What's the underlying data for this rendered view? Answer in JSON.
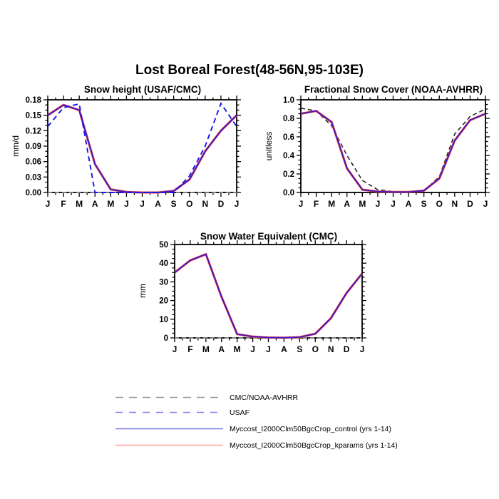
{
  "header": {
    "title": "Lost Boreal Forest(48-56N,95-103E)"
  },
  "months": [
    "J",
    "F",
    "M",
    "A",
    "M",
    "J",
    "J",
    "A",
    "S",
    "O",
    "N",
    "D",
    "J"
  ],
  "chart_data": [
    {
      "type": "line",
      "title": "Snow height (USAF/CMC)",
      "ylabel": "mm/d",
      "ylim": [
        0,
        0.18
      ],
      "yticks": [
        0,
        0.03,
        0.06,
        0.09,
        0.12,
        0.15,
        0.18
      ],
      "ytick_labels": [
        "0.00",
        "0.03",
        "0.06",
        "0.09",
        "0.12",
        "0.15",
        "0.18"
      ],
      "y_minor_per_major": 2,
      "categories": [
        "J",
        "F",
        "M",
        "A",
        "M",
        "J",
        "J",
        "A",
        "S",
        "O",
        "N",
        "D",
        "J"
      ],
      "series": [
        {
          "name": "cmc-obs",
          "label": "CMC/NOAA-AVHRR",
          "color": "#999999",
          "dash": "6,4",
          "width": 1.4,
          "values": [
            0,
            0,
            0,
            0,
            0,
            0,
            0,
            0,
            0,
            0,
            0,
            0,
            0
          ]
        },
        {
          "name": "kparams",
          "label": "Myccost_I2000Clm50BgcCrop_kparams (yrs 1-14)",
          "color": "#f04545",
          "dash": "",
          "width": 3.1,
          "values": [
            0.15,
            0.17,
            0.16,
            0.055,
            0.006,
            0.001,
            0.0,
            0.0,
            0.003,
            0.025,
            0.08,
            0.12,
            0.15
          ]
        },
        {
          "name": "control",
          "label": "Myccost_I2000Clm50BgcCrop_control (yrs 1-14)",
          "color": "#3518c8",
          "dash": "",
          "width": 1.7,
          "values": [
            0.15,
            0.17,
            0.16,
            0.055,
            0.006,
            0.001,
            0.0,
            0.0,
            0.003,
            0.025,
            0.08,
            0.12,
            0.15
          ]
        },
        {
          "name": "usaf",
          "label": "USAF",
          "color": "#1414f0",
          "dash": "7,5",
          "width": 1.9,
          "values": [
            0.128,
            0.165,
            0.172,
            0.0,
            0.0,
            0.0,
            0.0,
            0.0,
            0.0,
            0.032,
            0.09,
            0.173,
            0.128
          ]
        }
      ]
    },
    {
      "type": "line",
      "title": "Fractional Snow Cover (NOAA-AVHRR)",
      "ylabel": "unitless",
      "ylim": [
        0,
        1.0
      ],
      "yticks": [
        0,
        0.2,
        0.4,
        0.6,
        0.8,
        1.0
      ],
      "ytick_labels": [
        "0.0",
        "0.2",
        "0.4",
        "0.6",
        "0.8",
        "1.0"
      ],
      "y_minor_per_major": 3,
      "categories": [
        "J",
        "F",
        "M",
        "A",
        "M",
        "J",
        "J",
        "A",
        "S",
        "O",
        "N",
        "D",
        "J"
      ],
      "series": [
        {
          "name": "noaa-obs",
          "label": "CMC/NOAA-AVHRR",
          "color": "#1c1c1c",
          "dash": "6,4",
          "width": 1.5,
          "values": [
            0.91,
            0.88,
            0.72,
            0.4,
            0.13,
            0.03,
            0.01,
            0.01,
            0.02,
            0.17,
            0.63,
            0.82,
            0.9
          ]
        },
        {
          "name": "kparams",
          "label": "Myccost_I2000Clm50BgcCrop_kparams (yrs 1-14)",
          "color": "#f04545",
          "dash": "",
          "width": 3.1,
          "values": [
            0.85,
            0.88,
            0.76,
            0.26,
            0.03,
            0.01,
            0.005,
            0.005,
            0.02,
            0.15,
            0.56,
            0.78,
            0.85
          ]
        },
        {
          "name": "control",
          "label": "Myccost_I2000Clm50BgcCrop_control (yrs 1-14)",
          "color": "#3518c8",
          "dash": "",
          "width": 1.7,
          "values": [
            0.85,
            0.88,
            0.76,
            0.26,
            0.03,
            0.01,
            0.005,
            0.005,
            0.02,
            0.15,
            0.56,
            0.78,
            0.85
          ]
        }
      ]
    },
    {
      "type": "line",
      "title": "Snow Water Equivalent (CMC)",
      "ylabel": "mm",
      "ylim": [
        0,
        50
      ],
      "yticks": [
        0,
        10,
        20,
        30,
        40,
        50
      ],
      "ytick_labels": [
        "0",
        "10",
        "20",
        "30",
        "40",
        "50"
      ],
      "y_minor_per_major": 3,
      "categories": [
        "J",
        "F",
        "M",
        "A",
        "M",
        "J",
        "J",
        "A",
        "S",
        "O",
        "N",
        "D",
        "J"
      ],
      "series": [
        {
          "name": "cmc-obs",
          "label": "CMC/NOAA-AVHRR",
          "color": "#999999",
          "dash": "6,4",
          "width": 1.4,
          "values": [
            0,
            0,
            0,
            0,
            0,
            0,
            0,
            0,
            0,
            0,
            0,
            0,
            0
          ]
        },
        {
          "name": "kparams",
          "label": "Myccost_I2000Clm50BgcCrop_kparams (yrs 1-14)",
          "color": "#f04545",
          "dash": "",
          "width": 3.1,
          "values": [
            35,
            41.5,
            44.8,
            22,
            2.0,
            0.7,
            0.2,
            0.1,
            0.4,
            2.2,
            10.5,
            24,
            34.5
          ]
        },
        {
          "name": "control",
          "label": "Myccost_I2000Clm50BgcCrop_control (yrs 1-14)",
          "color": "#3518c8",
          "dash": "",
          "width": 1.7,
          "values": [
            35,
            41.5,
            44.8,
            22,
            2.0,
            0.7,
            0.2,
            0.1,
            0.4,
            2.2,
            10.5,
            24,
            34.5
          ]
        }
      ]
    }
  ],
  "legend": {
    "items": [
      {
        "label": "CMC/NOAA-AVHRR",
        "color": "#9a9a9a",
        "dash": "11,8"
      },
      {
        "label": "USAF",
        "color": "#8585f0",
        "dash": "10,9"
      },
      {
        "label": "Myccost_I2000Clm50BgcCrop_control (yrs 1-14)",
        "color": "#7373e6",
        "dash": ""
      },
      {
        "label": "Myccost_I2000Clm50BgcCrop_kparams (yrs 1-14)",
        "color": "#ff9e9e",
        "dash": ""
      }
    ]
  }
}
